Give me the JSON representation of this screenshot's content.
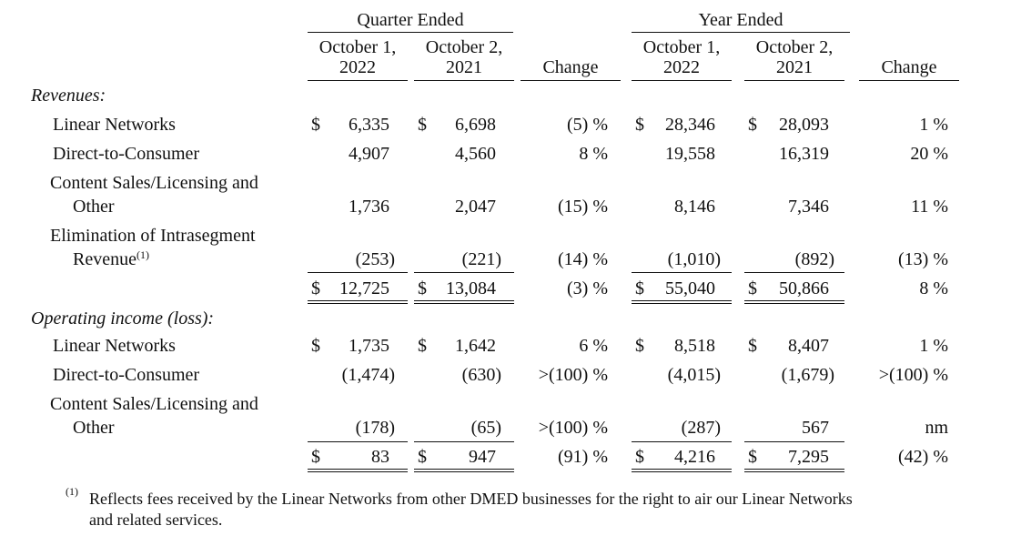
{
  "header": {
    "quarter_group": "Quarter Ended",
    "year_group": "Year Ended",
    "col_oct1_line1": "October 1,",
    "col_oct1_line2": "2022",
    "col_oct2_line1": "October 2,",
    "col_oct2_line2": "2021",
    "change": "Change"
  },
  "sections": {
    "revenues_title": "Revenues:",
    "operating_title": "Operating income (loss):"
  },
  "revenues": {
    "linear": {
      "label": "Linear Networks",
      "q22": "6,335",
      "q21": "6,698",
      "qchg": "(5) %",
      "y22": "28,346",
      "y21": "28,093",
      "ychg": "1 %"
    },
    "dtc": {
      "label": "Direct-to-Consumer",
      "q22": "4,907",
      "q21": "4,560",
      "qchg": "8 %",
      "y22": "19,558",
      "y21": "16,319",
      "ychg": "20 %"
    },
    "content": {
      "label1": "Content Sales/Licensing and",
      "label2": "Other",
      "q22": "1,736",
      "q21": "2,047",
      "qchg": "(15) %",
      "y22": "8,146",
      "y21": "7,346",
      "ychg": "11 %"
    },
    "elim": {
      "label1": "Elimination of Intrasegment",
      "label2": "Revenue",
      "sup": "(1)",
      "q22": "(253)",
      "q21": "(221)",
      "qchg": "(14) %",
      "y22": "(1,010)",
      "y21": "(892)",
      "ychg": "(13) %"
    },
    "total": {
      "q22": "12,725",
      "q21": "13,084",
      "qchg": "(3) %",
      "y22": "55,040",
      "y21": "50,866",
      "ychg": "8 %"
    }
  },
  "operating": {
    "linear": {
      "label": "Linear Networks",
      "q22": "1,735",
      "q21": "1,642",
      "qchg": "6 %",
      "y22": "8,518",
      "y21": "8,407",
      "ychg": "1 %"
    },
    "dtc": {
      "label": "Direct-to-Consumer",
      "q22": "(1,474)",
      "q21": "(630)",
      "qchg": ">(100) %",
      "y22": "(4,015)",
      "y21": "(1,679)",
      "ychg": ">(100) %"
    },
    "content": {
      "label1": "Content Sales/Licensing and",
      "label2": "Other",
      "q22": "(178)",
      "q21": "(65)",
      "qchg": ">(100) %",
      "y22": "(287)",
      "y21": "567",
      "ychg": "nm"
    },
    "total": {
      "q22": "83",
      "q21": "947",
      "qchg": "(91) %",
      "y22": "4,216",
      "y21": "7,295",
      "ychg": "(42) %"
    }
  },
  "currency_symbol": "$",
  "footnote": {
    "marker": "(1)",
    "line1": "Reflects fees received by the Linear Networks from other DMED businesses for the right to air our Linear Networks",
    "line2": "and related services."
  }
}
